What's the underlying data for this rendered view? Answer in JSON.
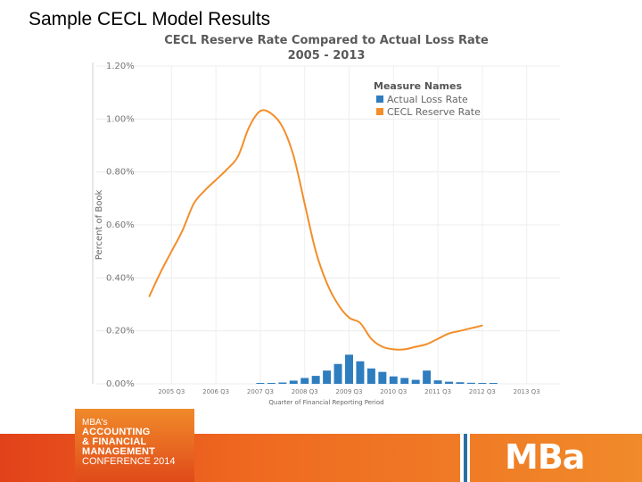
{
  "slide_title": "Sample CECL Model Results",
  "chart_data": {
    "type": "bar",
    "title": "CECL Reserve Rate Compared to Actual Loss Rate",
    "subtitle": "2005 - 2013",
    "xlabel": "Quarter of Financial Reporting Period",
    "ylabel": "Percent of Book",
    "ylim": [
      0,
      1.2
    ],
    "yticks": [
      0,
      0.2,
      0.4,
      0.6,
      0.8,
      1.0,
      1.2
    ],
    "ytick_labels": [
      "0.00%",
      "0.20%",
      "0.40%",
      "0.60%",
      "0.80%",
      "1.00%",
      "1.20%"
    ],
    "xtick_labels": [
      {
        "label": "2005 Q3",
        "q": 6
      },
      {
        "label": "2006 Q3",
        "q": 10
      },
      {
        "label": "2007 Q3",
        "q": 14
      },
      {
        "label": "2008 Q3",
        "q": 18
      },
      {
        "label": "2009 Q3",
        "q": 22
      },
      {
        "label": "2010 Q3",
        "q": 26
      },
      {
        "label": "2011 Q3",
        "q": 30
      },
      {
        "label": "2012 Q3",
        "q": 34
      },
      {
        "label": "2013 Q3",
        "q": 38
      }
    ],
    "legend_title": "Measure Names",
    "legend_position": "top-right",
    "grid": true,
    "series": [
      {
        "name": "Actual Loss Rate",
        "kind": "bar",
        "color": "#2e7dbf",
        "points": [
          {
            "q": 14,
            "value": 0.002
          },
          {
            "q": 15,
            "value": 0.003
          },
          {
            "q": 16,
            "value": 0.005
          },
          {
            "q": 17,
            "value": 0.012
          },
          {
            "q": 18,
            "value": 0.022
          },
          {
            "q": 19,
            "value": 0.03
          },
          {
            "q": 20,
            "value": 0.05
          },
          {
            "q": 21,
            "value": 0.075
          },
          {
            "q": 22,
            "value": 0.11
          },
          {
            "q": 23,
            "value": 0.085
          },
          {
            "q": 24,
            "value": 0.058
          },
          {
            "q": 25,
            "value": 0.045
          },
          {
            "q": 26,
            "value": 0.028
          },
          {
            "q": 27,
            "value": 0.022
          },
          {
            "q": 28,
            "value": 0.015
          },
          {
            "q": 29,
            "value": 0.05
          },
          {
            "q": 30,
            "value": 0.013
          },
          {
            "q": 31,
            "value": 0.008
          },
          {
            "q": 32,
            "value": 0.006
          },
          {
            "q": 33,
            "value": 0.004
          },
          {
            "q": 34,
            "value": 0.003
          },
          {
            "q": 35,
            "value": 0.002
          }
        ]
      },
      {
        "name": "CECL Reserve Rate",
        "kind": "line",
        "color": "#f28e2b",
        "points": [
          {
            "q": 4,
            "value": 0.33
          },
          {
            "q": 5,
            "value": 0.42
          },
          {
            "q": 6,
            "value": 0.5
          },
          {
            "q": 7,
            "value": 0.58
          },
          {
            "q": 8,
            "value": 0.68
          },
          {
            "q": 9,
            "value": 0.73
          },
          {
            "q": 10,
            "value": 0.77
          },
          {
            "q": 11,
            "value": 0.81
          },
          {
            "q": 12,
            "value": 0.86
          },
          {
            "q": 13,
            "value": 0.97
          },
          {
            "q": 14,
            "value": 1.03
          },
          {
            "q": 15,
            "value": 1.02
          },
          {
            "q": 16,
            "value": 0.97
          },
          {
            "q": 17,
            "value": 0.86
          },
          {
            "q": 18,
            "value": 0.68
          },
          {
            "q": 19,
            "value": 0.5
          },
          {
            "q": 20,
            "value": 0.38
          },
          {
            "q": 21,
            "value": 0.3
          },
          {
            "q": 22,
            "value": 0.25
          },
          {
            "q": 23,
            "value": 0.23
          },
          {
            "q": 24,
            "value": 0.17
          },
          {
            "q": 25,
            "value": 0.14
          },
          {
            "q": 26,
            "value": 0.13
          },
          {
            "q": 27,
            "value": 0.13
          },
          {
            "q": 28,
            "value": 0.14
          },
          {
            "q": 29,
            "value": 0.15
          },
          {
            "q": 30,
            "value": 0.17
          },
          {
            "q": 31,
            "value": 0.19
          },
          {
            "q": 32,
            "value": 0.2
          },
          {
            "q": 33,
            "value": 0.21
          },
          {
            "q": 34,
            "value": 0.22
          }
        ]
      }
    ]
  },
  "footer": {
    "conference_logo_lines": [
      "MBA's",
      "ACCOUNTING",
      "& FINANCIAL",
      "MANAGEMENT",
      "CONFERENCE 2014"
    ],
    "brand_logo": "MBa",
    "bar_color": "#ef6a20"
  }
}
